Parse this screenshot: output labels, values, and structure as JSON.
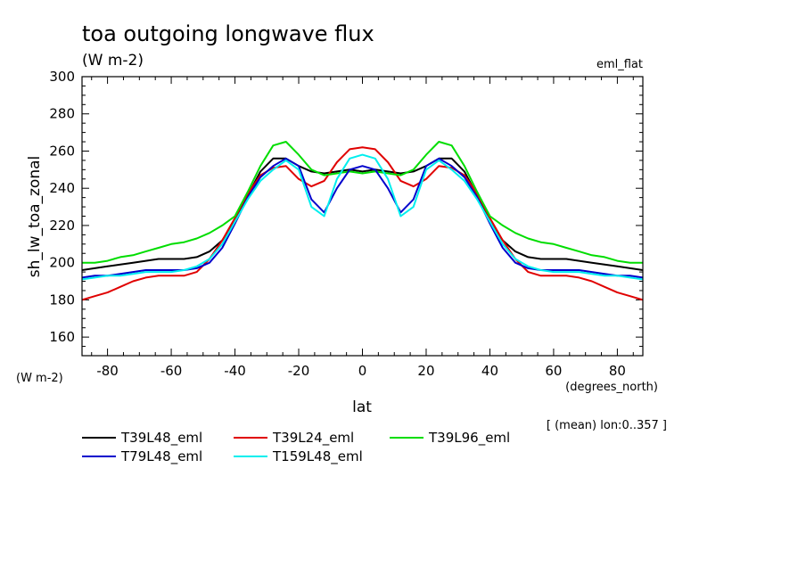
{
  "chart_data": {
    "type": "line",
    "title": "toa outgoing longwave flux",
    "subtitle": "(W m-2)",
    "experiment": "eml_flat",
    "ylabel": "sh_lw_toa_zonal",
    "yunits": "(W m-2)",
    "xlabel": "lat",
    "xunits": "(degrees_north)",
    "note": "[ (mean) lon:0..357 ]",
    "xlim": [
      -88,
      88
    ],
    "ylim": [
      150,
      300
    ],
    "xticks": [
      "-80",
      "-60",
      "-40",
      "-20",
      "0",
      "20",
      "40",
      "60",
      "80"
    ],
    "yticks": [
      "160",
      "180",
      "200",
      "220",
      "240",
      "260",
      "280",
      "300"
    ],
    "x": [
      -88,
      -84,
      -80,
      -76,
      -72,
      -68,
      -64,
      -60,
      -56,
      -52,
      -48,
      -44,
      -40,
      -36,
      -32,
      -28,
      -24,
      -20,
      -16,
      -12,
      -8,
      -4,
      0,
      4,
      8,
      12,
      16,
      20,
      24,
      28,
      32,
      36,
      40,
      44,
      48,
      52,
      56,
      60,
      64,
      68,
      72,
      76,
      80,
      84,
      88
    ],
    "series": [
      {
        "name": "T39L48_eml",
        "color": "#000000",
        "values": [
          196,
          197,
          198,
          199,
          200,
          201,
          202,
          202,
          202,
          203,
          206,
          212,
          222,
          236,
          249,
          256,
          256,
          252,
          249,
          248,
          249,
          250,
          249,
          250,
          249,
          248,
          249,
          252,
          256,
          256,
          249,
          236,
          222,
          212,
          206,
          203,
          202,
          202,
          202,
          201,
          200,
          199,
          198,
          197,
          196
        ]
      },
      {
        "name": "T39L24_eml",
        "color": "#e00000",
        "values": [
          180,
          182,
          184,
          187,
          190,
          192,
          193,
          193,
          193,
          195,
          202,
          212,
          224,
          237,
          247,
          251,
          252,
          245,
          241,
          244,
          254,
          261,
          262,
          261,
          254,
          244,
          241,
          245,
          252,
          251,
          247,
          237,
          224,
          212,
          202,
          195,
          193,
          193,
          193,
          192,
          190,
          187,
          184,
          182,
          180
        ]
      },
      {
        "name": "T39L96_eml",
        "color": "#00dd00",
        "values": [
          200,
          200,
          201,
          203,
          204,
          206,
          208,
          210,
          211,
          213,
          216,
          220,
          225,
          238,
          252,
          263,
          265,
          258,
          250,
          247,
          248,
          249,
          248,
          249,
          248,
          247,
          250,
          258,
          265,
          263,
          252,
          238,
          225,
          220,
          216,
          213,
          211,
          210,
          208,
          206,
          204,
          203,
          201,
          200,
          200
        ]
      },
      {
        "name": "T79L48_eml",
        "color": "#0000cc",
        "values": [
          192,
          193,
          193,
          194,
          195,
          196,
          196,
          196,
          196,
          197,
          200,
          208,
          221,
          235,
          246,
          252,
          256,
          252,
          234,
          227,
          240,
          250,
          252,
          250,
          240,
          227,
          234,
          252,
          256,
          252,
          246,
          235,
          221,
          208,
          200,
          197,
          196,
          196,
          196,
          196,
          195,
          194,
          193,
          193,
          192
        ]
      },
      {
        "name": "T159L48_eml",
        "color": "#00eeee",
        "values": [
          191,
          192,
          193,
          193,
          194,
          195,
          195,
          195,
          196,
          198,
          202,
          210,
          222,
          234,
          244,
          250,
          255,
          250,
          230,
          225,
          245,
          256,
          258,
          256,
          245,
          225,
          230,
          250,
          255,
          250,
          244,
          234,
          222,
          210,
          202,
          198,
          196,
          195,
          195,
          195,
          194,
          193,
          193,
          192,
          191
        ]
      }
    ],
    "legend_position": "bottom-left",
    "grid": false
  }
}
